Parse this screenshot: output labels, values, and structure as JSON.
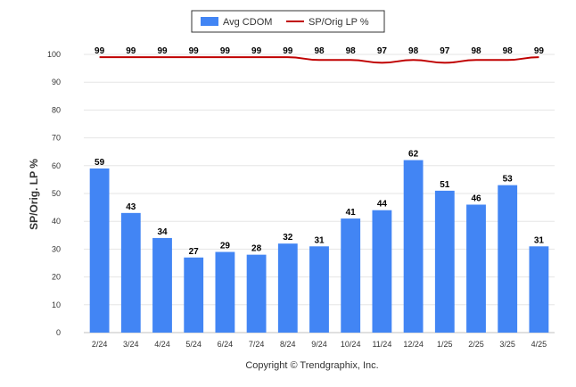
{
  "chart_data": {
    "type": "bar",
    "categories": [
      "2/24",
      "3/24",
      "4/24",
      "5/24",
      "6/24",
      "7/24",
      "8/24",
      "9/24",
      "10/24",
      "11/24",
      "12/24",
      "1/25",
      "2/25",
      "3/25",
      "4/25"
    ],
    "series": [
      {
        "name": "Avg CDOM",
        "type": "bar",
        "color": "#4285f4",
        "values": [
          59,
          43,
          34,
          27,
          29,
          28,
          32,
          31,
          41,
          44,
          62,
          51,
          46,
          53,
          31
        ]
      },
      {
        "name": "SP/Orig LP %",
        "type": "line",
        "color": "#c00000",
        "values": [
          99,
          99,
          99,
          99,
          99,
          99,
          99,
          98,
          98,
          97,
          98,
          97,
          98,
          98,
          99
        ]
      }
    ],
    "ylabel": "SP/Orig. LP %",
    "ylim": [
      0,
      100
    ],
    "yticks": [
      0,
      10,
      20,
      30,
      40,
      50,
      60,
      70,
      80,
      90,
      100
    ],
    "grid": true,
    "legend_position": "top-center"
  },
  "footer": {
    "copyright": "Copyright © Trendgraphix, Inc."
  }
}
